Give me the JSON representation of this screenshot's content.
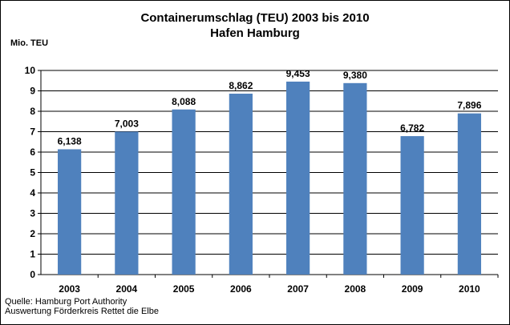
{
  "chart_data": {
    "type": "bar",
    "title": "Containerumschlag (TEU) 2003 bis 2010",
    "subtitle": "Hafen Hamburg",
    "ylabel": "Mio. TEU",
    "xlabel": "",
    "categories": [
      "2003",
      "2004",
      "2005",
      "2006",
      "2007",
      "2008",
      "2009",
      "2010"
    ],
    "values": [
      6.138,
      7.003,
      8.088,
      8.862,
      9.453,
      9.38,
      6.782,
      7.896
    ],
    "value_labels": [
      "6,138",
      "7,003",
      "8,088",
      "8,862",
      "9,453",
      "9,380",
      "6,782",
      "7,896"
    ],
    "ylim": [
      0,
      10
    ],
    "yticks": [
      "0",
      "1",
      "2",
      "3",
      "4",
      "5",
      "6",
      "7",
      "8",
      "9",
      "10"
    ],
    "grid": true,
    "legend": "none",
    "bar_color": "#4F81BD"
  },
  "source": {
    "line1": "Quelle: Hamburg Port Authority",
    "line2": "Auswertung Förderkreis Rettet die Elbe"
  }
}
